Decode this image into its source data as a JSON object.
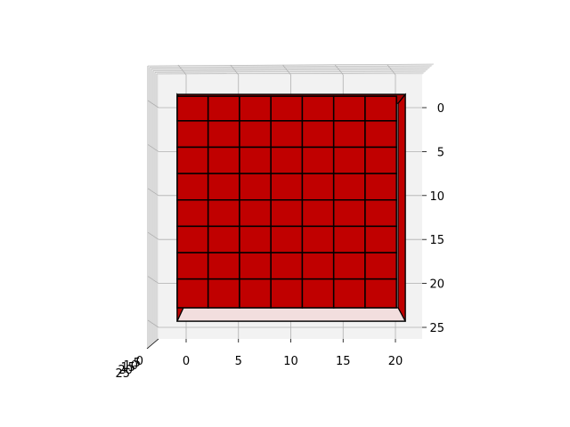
{
  "chart_data": {
    "type": "voxel-3d",
    "title": "",
    "xlabel": "",
    "ylabel": "",
    "zlabel": "",
    "x_ticks": [
      "0",
      "5",
      "10",
      "15",
      "20"
    ],
    "y_ticks": [
      "0",
      "5",
      "10",
      "15",
      "20",
      "25"
    ],
    "depth_ticks": [
      "0",
      "5",
      "10",
      "15",
      "20",
      "25"
    ],
    "xlim": [
      -1.7,
      22.7
    ],
    "ylim": [
      -2.5,
      26.2
    ],
    "grid": true,
    "block": {
      "columns": [
        0,
        3,
        6,
        9,
        12,
        15,
        18
      ],
      "column_end": 21,
      "rows": [
        0,
        3,
        6,
        9,
        12,
        15,
        18,
        21
      ],
      "row_end": 24,
      "face_color": "#c00000",
      "edge_color": "#000000",
      "bottom_color": "#f2dede"
    },
    "colors": {
      "pane": "#f2f2f2",
      "grid": "#b0b0b0",
      "face": "#c00000",
      "edge": "#000000"
    }
  }
}
